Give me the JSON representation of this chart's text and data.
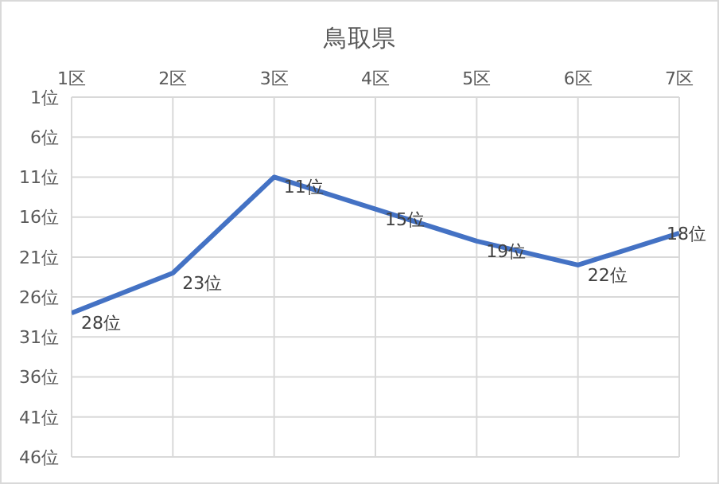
{
  "chart_data": {
    "type": "line",
    "title": "鳥取県",
    "categories": [
      "1区",
      "2区",
      "3区",
      "4区",
      "5区",
      "6区",
      "7区"
    ],
    "series": [
      {
        "color": "#4472c4",
        "values": [
          28,
          23,
          11,
          15,
          19,
          22,
          18
        ],
        "value_labels": [
          "28位",
          "23位",
          "11位",
          "15位",
          "19位",
          "22位",
          "18位"
        ]
      }
    ],
    "ylim": [
      46,
      1
    ],
    "yticks": [
      {
        "value": 1,
        "label": "1位"
      },
      {
        "value": 6,
        "label": "6位"
      },
      {
        "value": 11,
        "label": "11位"
      },
      {
        "value": 16,
        "label": "16位"
      },
      {
        "value": 21,
        "label": "21位"
      },
      {
        "value": 26,
        "label": "26位"
      },
      {
        "value": 31,
        "label": "31位"
      },
      {
        "value": 36,
        "label": "36位"
      },
      {
        "value": 41,
        "label": "41位"
      },
      {
        "value": 46,
        "label": "46位"
      }
    ],
    "grid": true,
    "legend": false,
    "marker": "none",
    "line_style": "solid"
  }
}
